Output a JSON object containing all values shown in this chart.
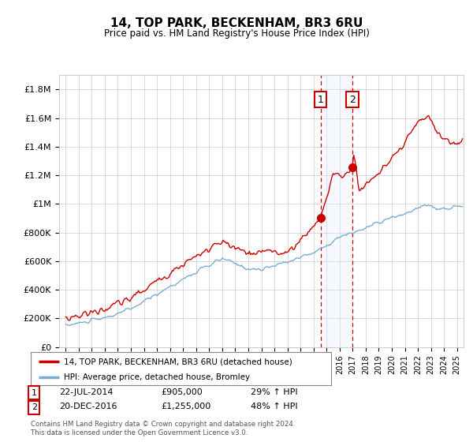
{
  "title": "14, TOP PARK, BECKENHAM, BR3 6RU",
  "subtitle": "Price paid vs. HM Land Registry's House Price Index (HPI)",
  "ylabel_ticks": [
    "£0",
    "£200K",
    "£400K",
    "£600K",
    "£800K",
    "£1M",
    "£1.2M",
    "£1.4M",
    "£1.6M",
    "£1.8M"
  ],
  "ytick_values": [
    0,
    200000,
    400000,
    600000,
    800000,
    1000000,
    1200000,
    1400000,
    1600000,
    1800000
  ],
  "ylim": [
    0,
    1900000
  ],
  "xlim_start": 1994.5,
  "xlim_end": 2025.5,
  "legend1_label": "14, TOP PARK, BECKENHAM, BR3 6RU (detached house)",
  "legend2_label": "HPI: Average price, detached house, Bromley",
  "sale1_date": "22-JUL-2014",
  "sale1_price": "£905,000",
  "sale1_hpi": "29% ↑ HPI",
  "sale1_year": 2014.55,
  "sale1_value": 905000,
  "sale2_date": "20-DEC-2016",
  "sale2_price": "£1,255,000",
  "sale2_hpi": "48% ↑ HPI",
  "sale2_year": 2016.97,
  "sale2_value": 1255000,
  "footer": "Contains HM Land Registry data © Crown copyright and database right 2024.\nThis data is licensed under the Open Government Licence v3.0.",
  "red_color": "#cc0000",
  "blue_color": "#7aadcf",
  "shade_color": "#ddeeff",
  "background_color": "#ffffff",
  "grid_color": "#cccccc"
}
